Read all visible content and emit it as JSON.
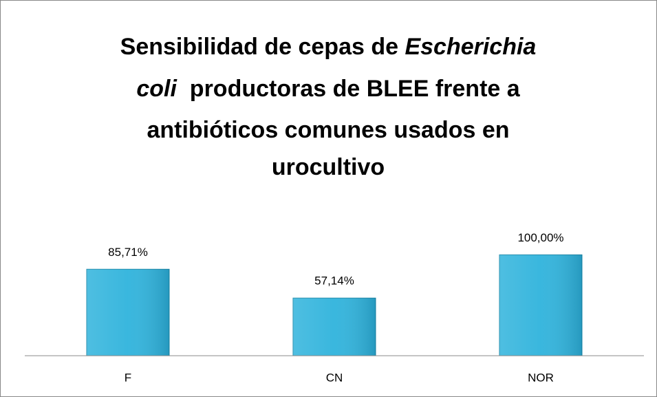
{
  "chart_data": {
    "type": "bar",
    "title": [
      {
        "text": "Sensibilidad de cepas de "
      },
      {
        "text": "Escherichia",
        "italic": true
      },
      {
        "text": "coli",
        "italic": true
      },
      {
        "text": "  productoras de BLEE frente a"
      },
      {
        "text": "antibióticos comunes usados en"
      },
      {
        "text": "urocultivo"
      }
    ],
    "categories": [
      "F",
      "CN",
      "NOR"
    ],
    "values": [
      85.71,
      57.14,
      100
    ],
    "value_labels": [
      "85,71%",
      "57,14%",
      "100,00%"
    ],
    "color": "#2fb3dc",
    "ylim": [
      0,
      120
    ]
  }
}
